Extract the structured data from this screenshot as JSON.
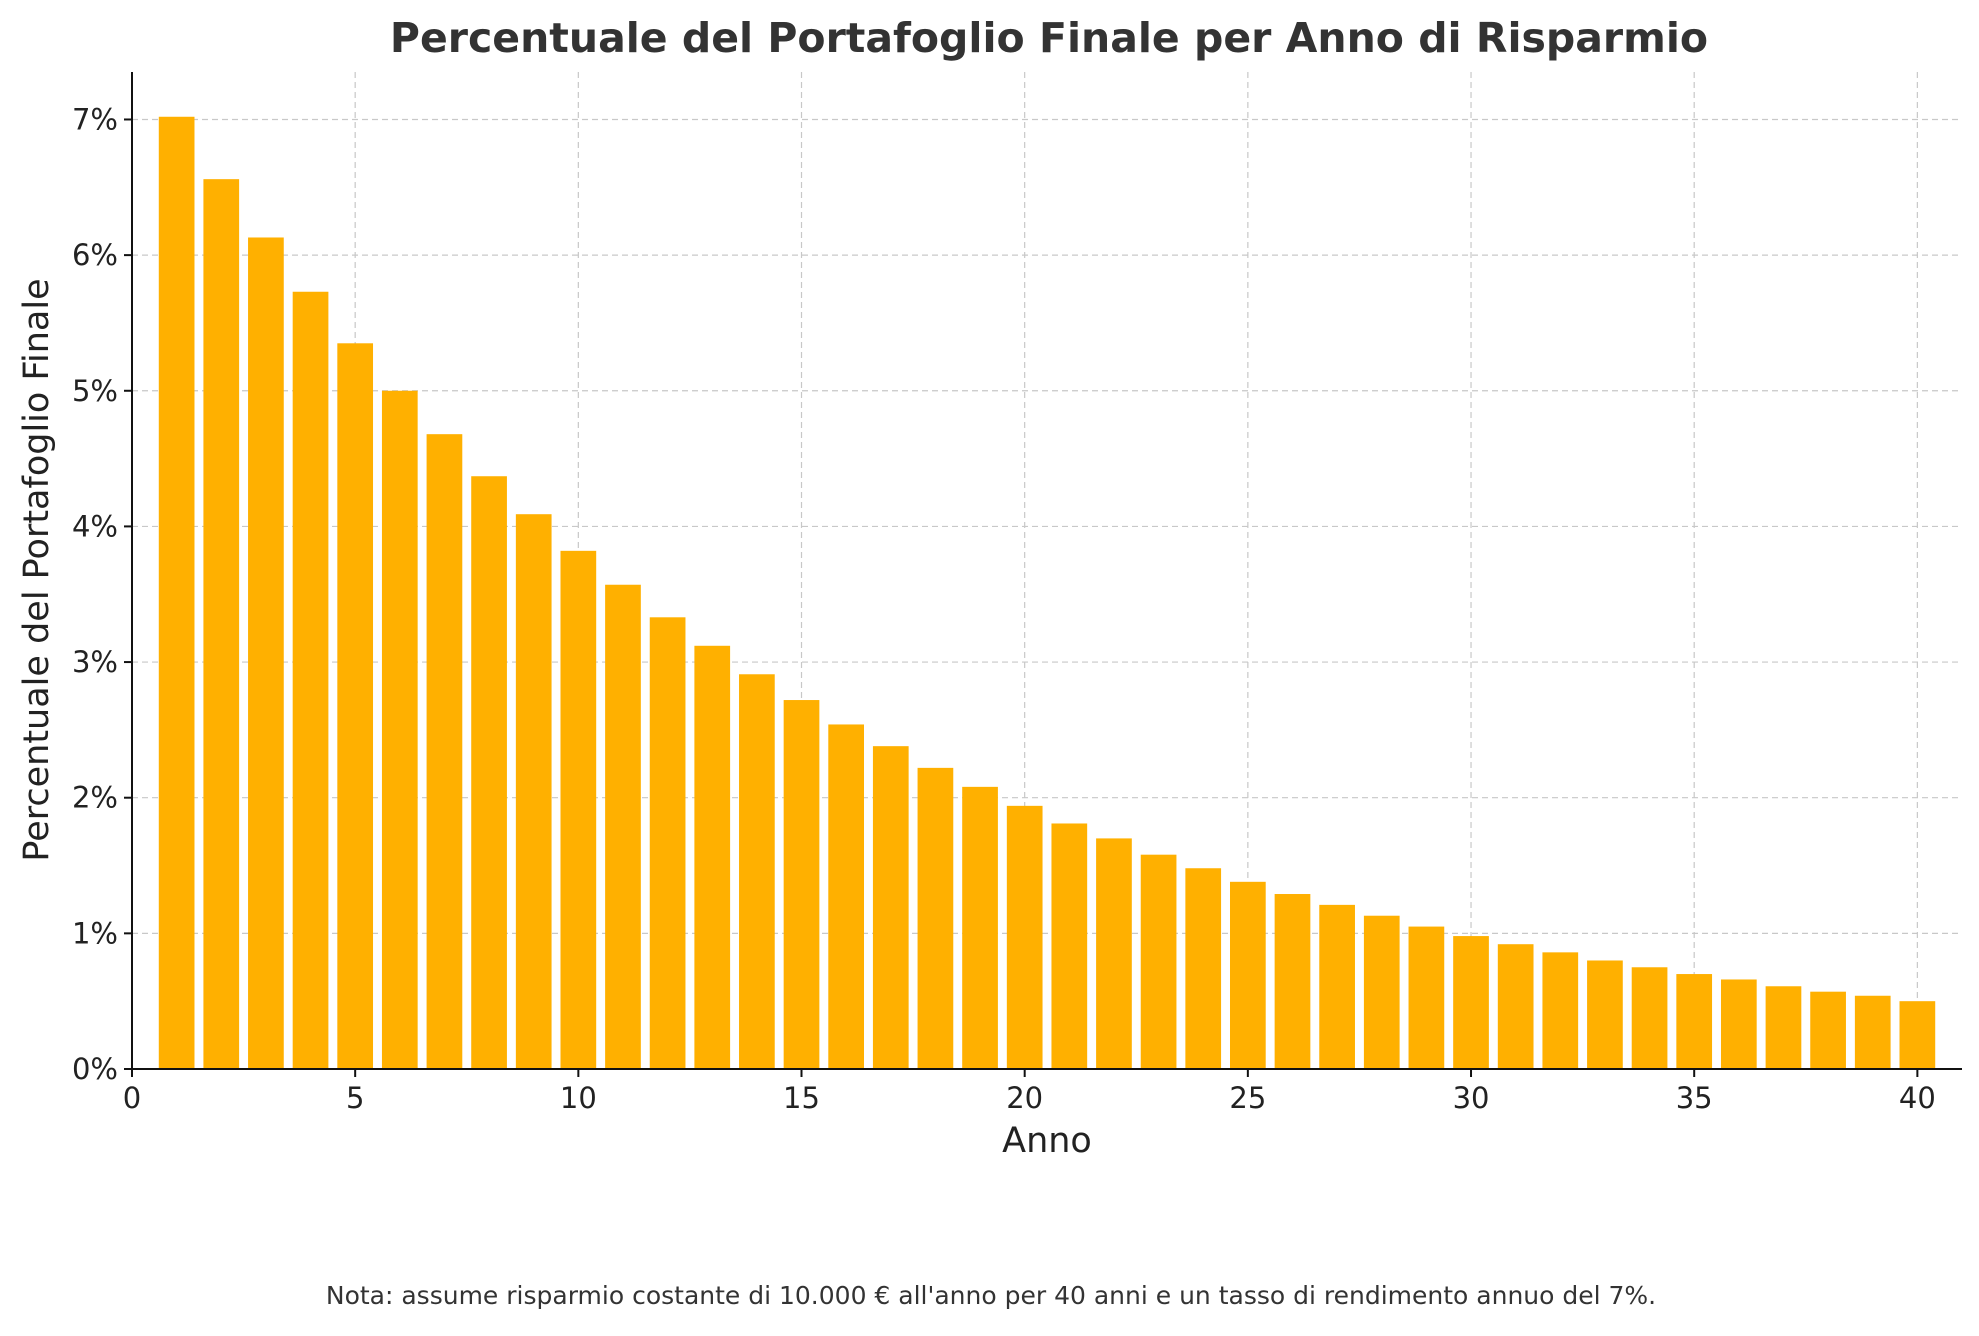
{
  "chart_data": {
    "type": "bar",
    "title": "Percentuale del Portafoglio Finale per Anno di Risparmio",
    "xlabel": "Anno",
    "ylabel": "Percentuale del Portafoglio Finale",
    "xlim": [
      0,
      41
    ],
    "ylim": [
      0,
      7.35
    ],
    "xticks": [
      0,
      5,
      10,
      15,
      20,
      25,
      30,
      35,
      40
    ],
    "yticks": [
      0,
      1,
      2,
      3,
      4,
      5,
      6,
      7
    ],
    "ytick_suffix": "%",
    "grid": true,
    "bar_color": "#ffb000",
    "categories": [
      1,
      2,
      3,
      4,
      5,
      6,
      7,
      8,
      9,
      10,
      11,
      12,
      13,
      14,
      15,
      16,
      17,
      18,
      19,
      20,
      21,
      22,
      23,
      24,
      25,
      26,
      27,
      28,
      29,
      30,
      31,
      32,
      33,
      34,
      35,
      36,
      37,
      38,
      39,
      40
    ],
    "values": [
      7.02,
      6.56,
      6.13,
      5.73,
      5.35,
      5.0,
      4.68,
      4.37,
      4.09,
      3.82,
      3.57,
      3.33,
      3.12,
      2.91,
      2.72,
      2.54,
      2.38,
      2.22,
      2.08,
      1.94,
      1.81,
      1.7,
      1.58,
      1.48,
      1.38,
      1.29,
      1.21,
      1.13,
      1.05,
      0.98,
      0.92,
      0.86,
      0.8,
      0.75,
      0.7,
      0.66,
      0.61,
      0.57,
      0.54,
      0.5
    ],
    "note": "Nota: assume risparmio costante di 10.000 € all'anno per 40 anni e un tasso di rendimento annuo del 7%."
  }
}
